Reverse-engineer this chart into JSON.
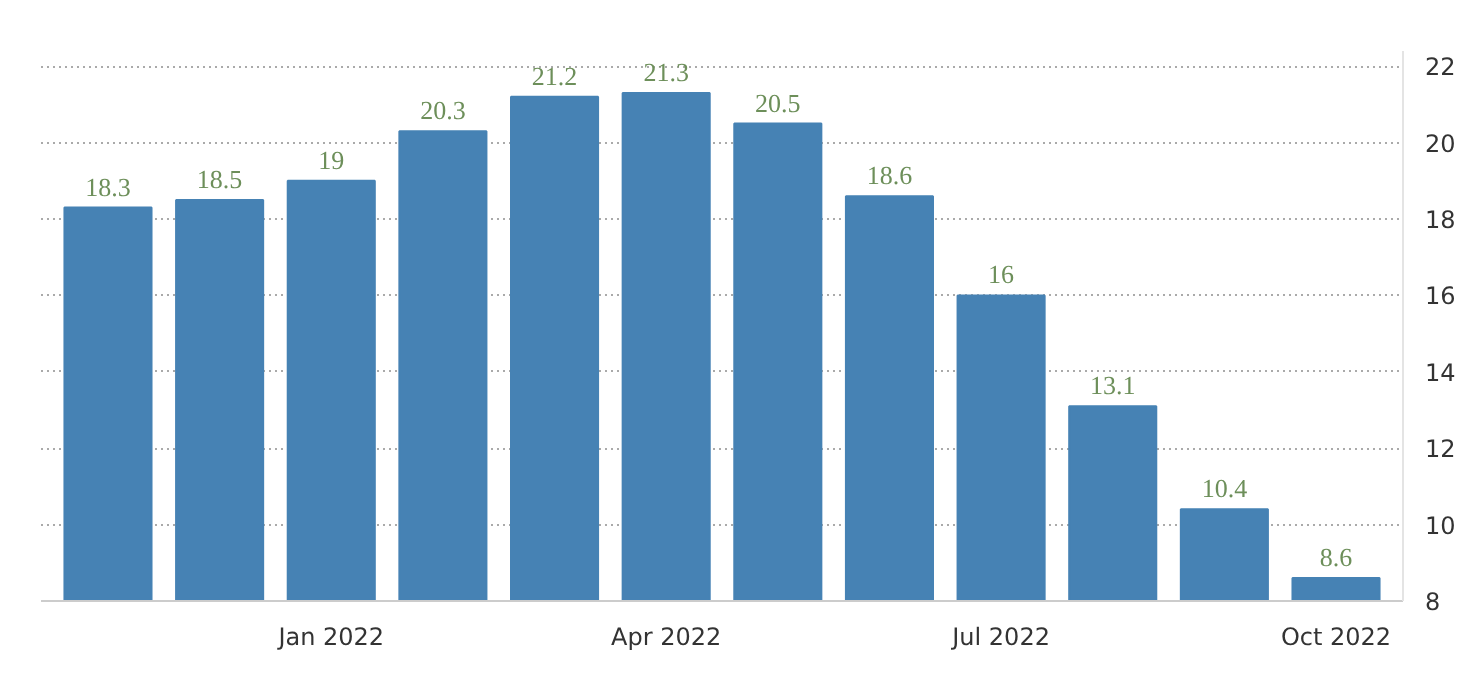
{
  "chart_data": {
    "type": "bar",
    "categories": [
      null,
      null,
      "Jan 2022",
      null,
      null,
      "Apr 2022",
      null,
      null,
      "Jul 2022",
      null,
      null,
      "Oct 2022"
    ],
    "values": [
      18.3,
      18.5,
      19,
      20.3,
      21.2,
      21.3,
      20.5,
      18.6,
      16,
      13.1,
      10.4,
      8.6
    ],
    "color": "#4682b4",
    "ylim": [
      8,
      22.4
    ],
    "yticks": [
      8,
      10,
      12,
      14,
      16,
      18,
      20,
      22
    ],
    "grid": "y",
    "data_labels": true
  }
}
